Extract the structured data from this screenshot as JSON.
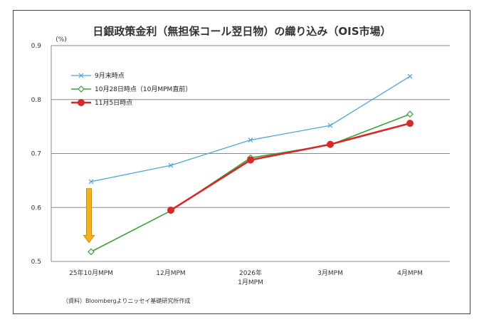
{
  "chart_data": {
    "type": "line",
    "title": "日銀政策金利（無担保コール翌日物）の織り込み（OIS市場）",
    "yunit": "(%)",
    "ylim": [
      0.5,
      0.9
    ],
    "yticks": [
      "0.5",
      "0.6",
      "0.7",
      "0.8",
      "0.9"
    ],
    "categories": [
      {
        "line1": "25年10月MPM",
        "line2": ""
      },
      {
        "line1": "12月MPM",
        "line2": ""
      },
      {
        "line1": "2026年",
        "line2": "1月MPM"
      },
      {
        "line1": "3月MPM",
        "line2": ""
      },
      {
        "line1": "4月MPM",
        "line2": ""
      }
    ],
    "series": [
      {
        "name": "9月末時点",
        "color": "#4ea6d8",
        "marker": "x",
        "values": [
          0.648,
          0.678,
          0.725,
          0.752,
          0.843
        ]
      },
      {
        "name": "10月28日時点（10月MPM直前）",
        "color": "#3da13d",
        "marker": "diamond",
        "values": [
          0.518,
          0.594,
          0.692,
          0.716,
          0.773
        ]
      },
      {
        "name": "11月5日時点",
        "color": "#d42a2a",
        "marker": "circle",
        "values": [
          null,
          0.595,
          0.688,
          0.717,
          0.756
        ]
      }
    ],
    "annotation": {
      "type": "arrow-down",
      "category_index": 0,
      "from": 0.635,
      "to": 0.535,
      "color": "#f2b21e"
    },
    "grid": true,
    "legend": "top-left",
    "source": "（資料）Bloombergよりニッセイ基礎研究所作成"
  }
}
